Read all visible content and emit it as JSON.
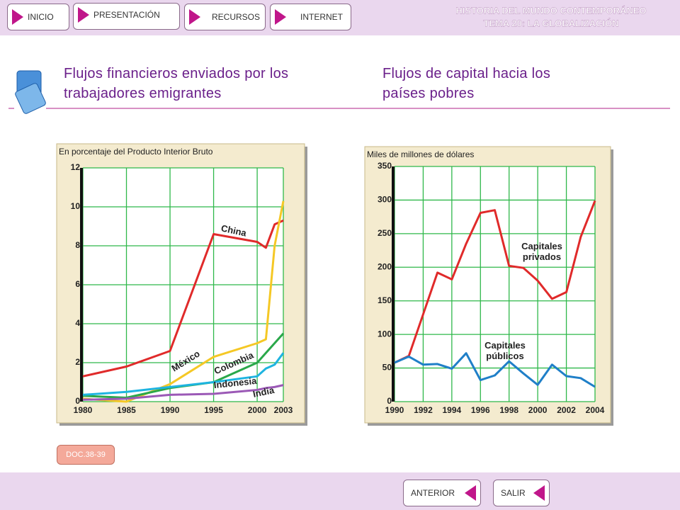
{
  "header": {
    "title": "HISTORIA DEL MUNDO CONTEMPORÁNEO",
    "subtitle": "TEMA 20: LA GLOBALIZACIÓN"
  },
  "nav": [
    "INICIO",
    "PRESENTACIÓN",
    "RECURSOS",
    "INTERNET"
  ],
  "headings": [
    "Flujos financieros enviados por los trabajadores emigrantes",
    "Flujos de capital hacia los países pobres"
  ],
  "doc_button": "DOC.38-39",
  "footer": [
    "ANTERIOR",
    "SALIR"
  ],
  "chart_data": [
    {
      "type": "line",
      "ylabel": "En porcentaje del Producto Interior Bruto",
      "x": [
        1980,
        1985,
        1990,
        1995,
        2000,
        2001,
        2002,
        2003
      ],
      "xlim": [
        1980,
        2003
      ],
      "xticks": [
        1980,
        1985,
        1990,
        1995,
        2000,
        2003
      ],
      "ylim": [
        0,
        12
      ],
      "yticks": [
        0,
        2,
        4,
        6,
        8,
        10,
        12
      ],
      "grid": true,
      "series": [
        {
          "name": "China",
          "color": "#e02a2a",
          "values": [
            1.3,
            1.8,
            2.6,
            8.6,
            8.2,
            7.9,
            9.1,
            9.3
          ]
        },
        {
          "name": "México",
          "color": "#f5c825",
          "values": [
            0.15,
            0.0,
            0.9,
            2.3,
            3.0,
            3.2,
            8.0,
            10.3
          ]
        },
        {
          "name": "Colombia",
          "color": "#2aa84a",
          "values": [
            0.3,
            0.2,
            0.7,
            1.0,
            2.0,
            2.5,
            3.0,
            3.5
          ]
        },
        {
          "name": "Indonesia",
          "color": "#1eb4e0",
          "values": [
            0.35,
            0.5,
            0.75,
            1.0,
            1.3,
            1.7,
            1.9,
            2.5
          ]
        },
        {
          "name": "India",
          "color": "#9b59b6",
          "values": [
            0.1,
            0.15,
            0.35,
            0.4,
            0.6,
            0.7,
            0.75,
            0.85
          ]
        }
      ]
    },
    {
      "type": "line",
      "ylabel": "Miles de millones de dólares",
      "x": [
        1990,
        1991,
        1992,
        1993,
        1994,
        1995,
        1996,
        1997,
        1998,
        1999,
        2000,
        2001,
        2002,
        2003,
        2004
      ],
      "xlim": [
        1990,
        2004
      ],
      "xticks": [
        1990,
        1992,
        1994,
        1996,
        1998,
        2000,
        2002,
        2004
      ],
      "ylim": [
        0,
        350
      ],
      "yticks": [
        0,
        50,
        100,
        150,
        200,
        250,
        300,
        350
      ],
      "grid": true,
      "series": [
        {
          "name": "Capitales privados",
          "color": "#e02a2a",
          "values": [
            58,
            68,
            130,
            192,
            182,
            235,
            281,
            285,
            202,
            199,
            180,
            153,
            163,
            245,
            299
          ]
        },
        {
          "name": "Capitales públicos",
          "color": "#1f7fc8",
          "values": [
            58,
            67,
            55,
            56,
            49,
            72,
            32,
            39,
            60,
            42,
            25,
            55,
            38,
            35,
            22
          ]
        }
      ]
    }
  ]
}
